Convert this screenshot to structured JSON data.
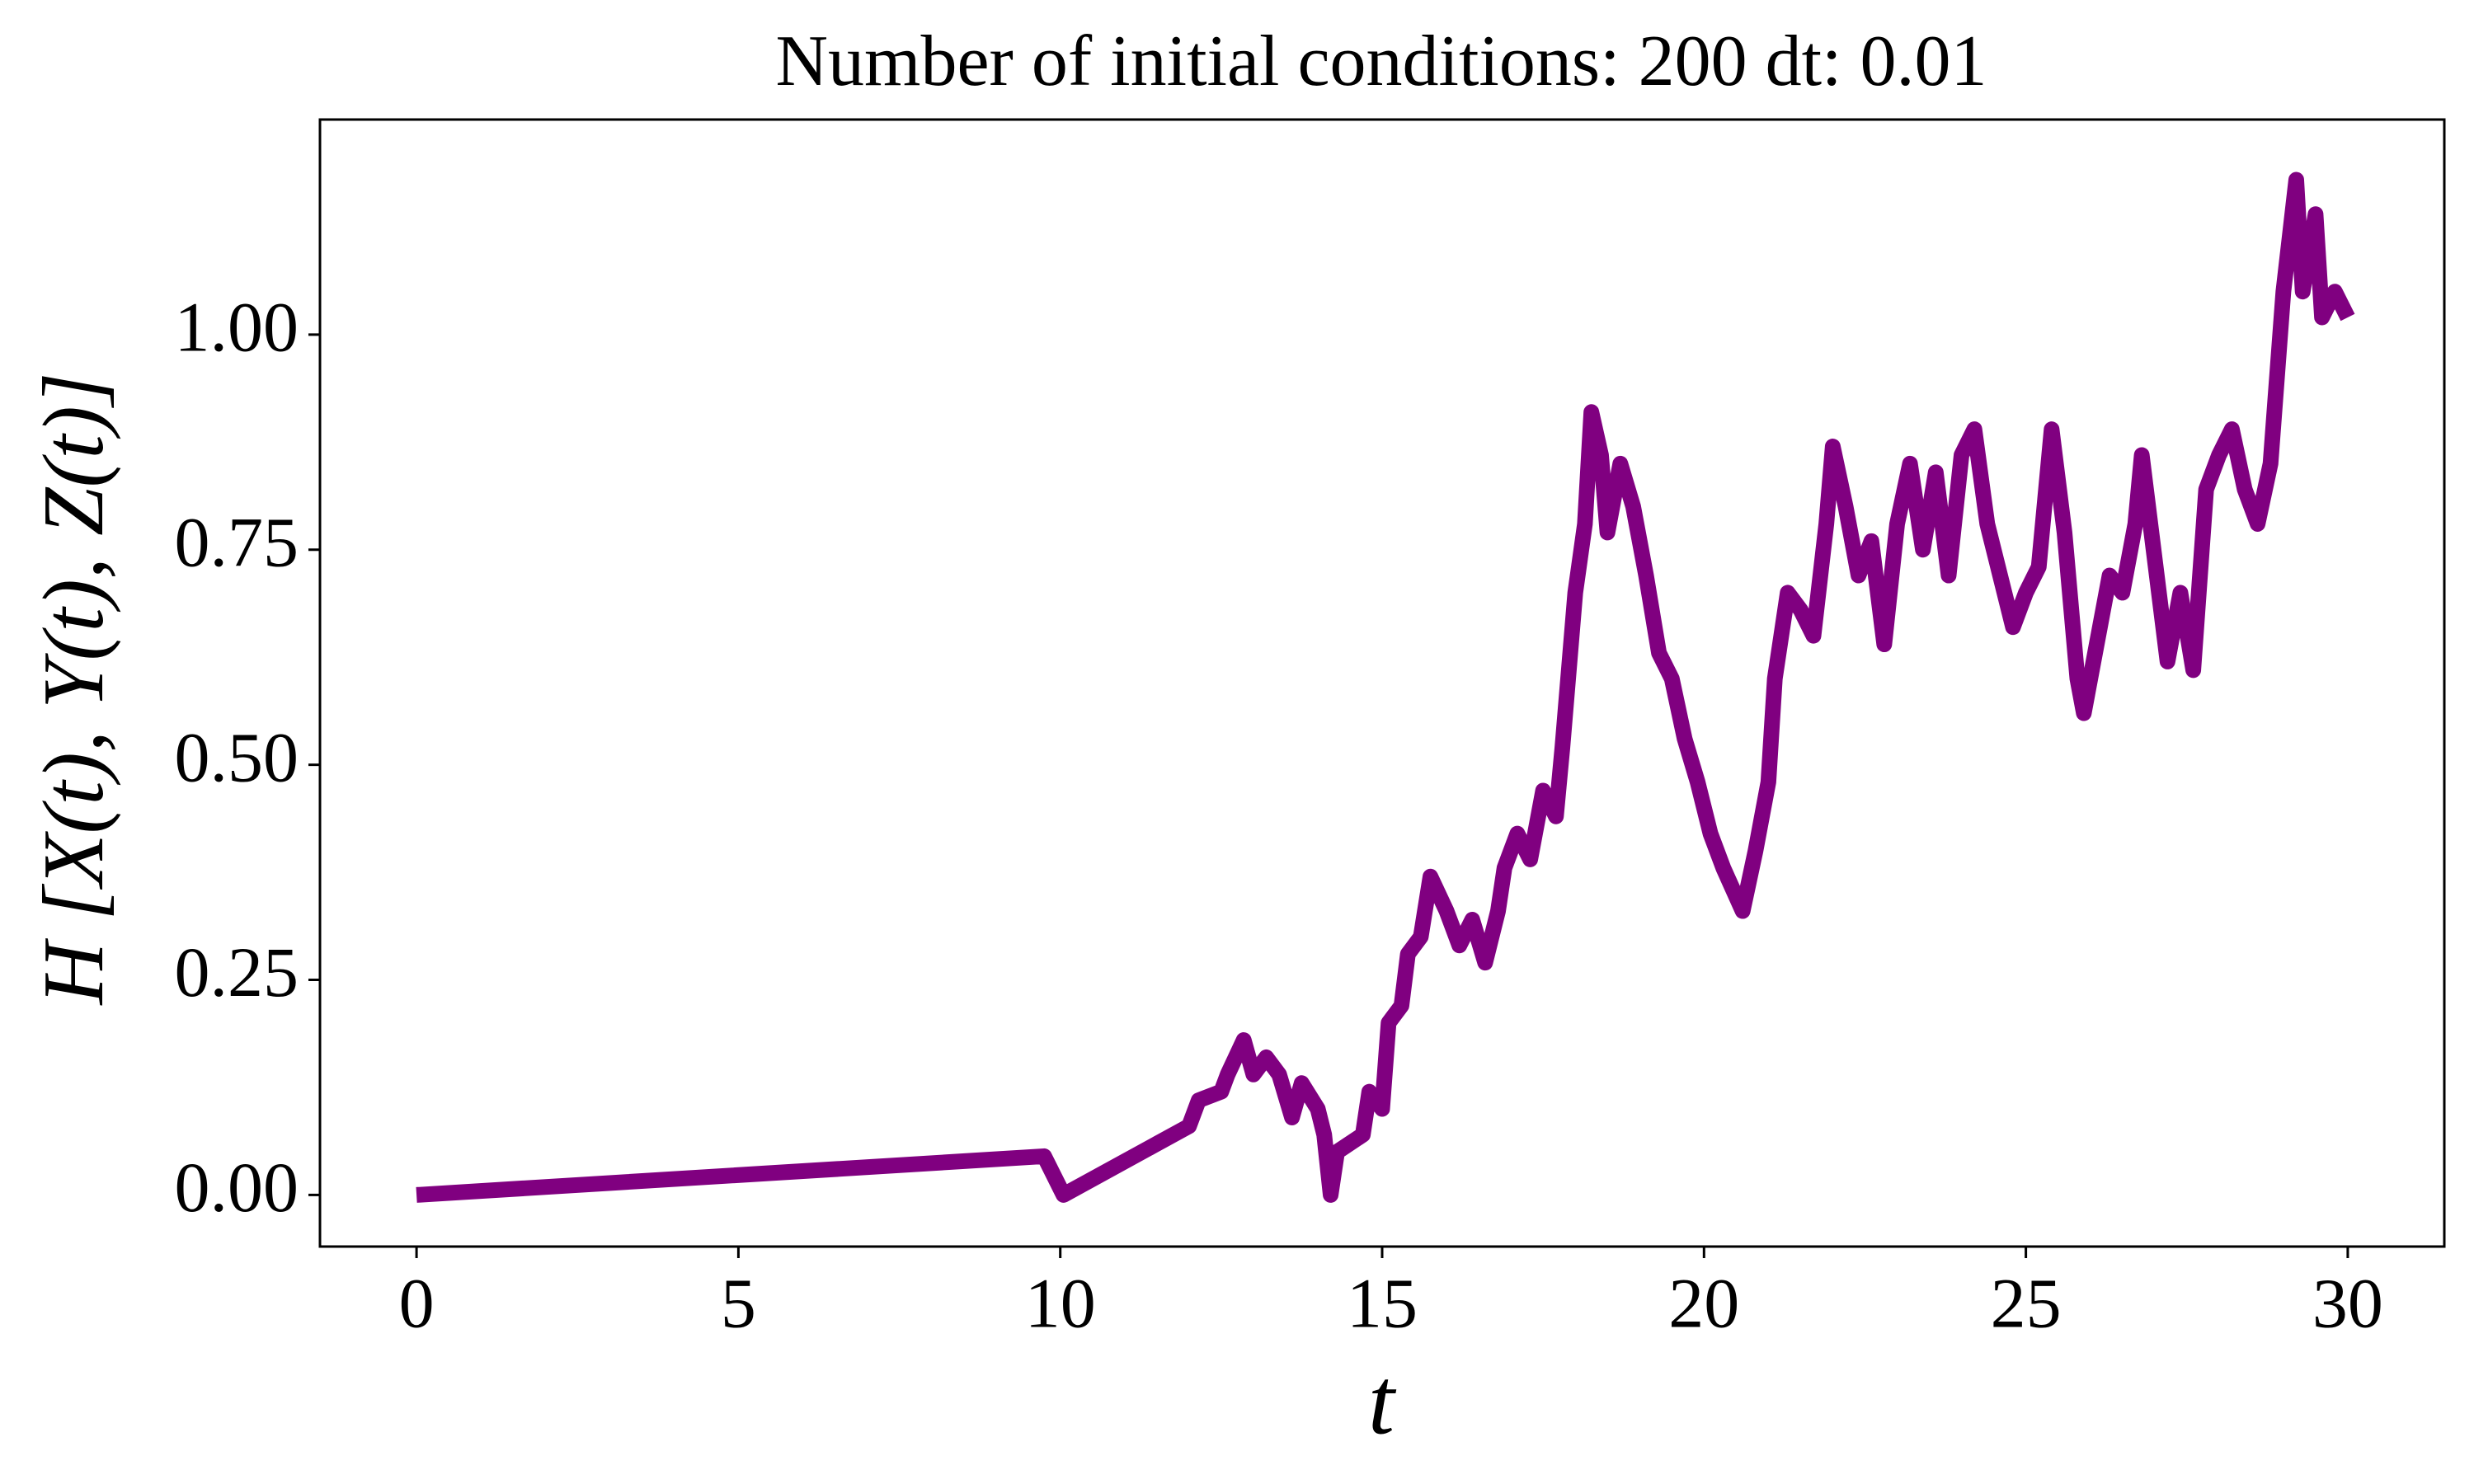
{
  "chart_data": {
    "type": "line",
    "title": "Number of initial conditions: 200 dt: 0.01",
    "xlabel": "t",
    "ylabel": "H [X(t), Y(t), Z(t)]",
    "x": [
      0,
      9.75,
      10.05,
      12.0,
      12.15,
      12.5,
      12.6,
      12.85,
      13.0,
      13.2,
      13.4,
      13.6,
      13.75,
      14.0,
      14.1,
      14.2,
      14.3,
      14.7,
      14.8,
      15.0,
      15.1,
      15.3,
      15.4,
      15.6,
      15.75,
      16.0,
      16.2,
      16.4,
      16.6,
      16.8,
      16.9,
      17.1,
      17.3,
      17.5,
      17.7,
      17.8,
      18.0,
      18.15,
      18.25,
      18.4,
      18.5,
      18.7,
      18.9,
      19.1,
      19.3,
      19.5,
      19.7,
      19.9,
      20.1,
      20.3,
      20.6,
      20.8,
      21.0,
      21.1,
      21.3,
      21.5,
      21.7,
      21.9,
      22.0,
      22.2,
      22.4,
      22.6,
      22.8,
      23.0,
      23.2,
      23.4,
      23.6,
      23.8,
      24.0,
      24.2,
      24.4,
      24.6,
      24.8,
      25.0,
      25.2,
      25.4,
      25.6,
      25.8,
      25.9,
      26.1,
      26.3,
      26.5,
      26.7,
      26.8,
      27.0,
      27.2,
      27.4,
      27.6,
      27.8,
      28.0,
      28.2,
      28.4,
      28.6,
      28.8,
      29.0,
      29.2,
      29.3,
      29.5,
      29.6,
      29.8,
      30.0
    ],
    "series": [
      {
        "color": "#800080",
        "values": [
          0,
          0.045,
          0,
          0.08,
          0.11,
          0.12,
          0.14,
          0.18,
          0.14,
          0.16,
          0.14,
          0.09,
          0.13,
          0.1,
          0.07,
          0.0,
          0.05,
          0.07,
          0.12,
          0.1,
          0.2,
          0.22,
          0.28,
          0.3,
          0.37,
          0.33,
          0.29,
          0.32,
          0.27,
          0.33,
          0.38,
          0.42,
          0.39,
          0.47,
          0.44,
          0.52,
          0.7,
          0.78,
          0.91,
          0.86,
          0.77,
          0.85,
          0.8,
          0.72,
          0.63,
          0.6,
          0.53,
          0.48,
          0.42,
          0.38,
          0.33,
          0.4,
          0.48,
          0.6,
          0.7,
          0.68,
          0.65,
          0.78,
          0.87,
          0.8,
          0.72,
          0.76,
          0.64,
          0.78,
          0.85,
          0.75,
          0.84,
          0.72,
          0.86,
          0.89,
          0.78,
          0.72,
          0.66,
          0.7,
          0.73,
          0.89,
          0.77,
          0.6,
          0.56,
          0.64,
          0.72,
          0.7,
          0.78,
          0.86,
          0.74,
          0.62,
          0.7,
          0.61,
          0.82,
          0.86,
          0.89,
          0.82,
          0.78,
          0.85,
          1.05,
          1.18,
          1.05,
          1.14,
          1.02,
          1.05,
          1.02
        ]
      }
    ],
    "xlim": [
      -1.5,
      31.5
    ],
    "ylim": [
      -0.06,
      1.25
    ],
    "xticks": [
      0,
      5,
      10,
      15,
      20,
      25,
      30
    ],
    "yticks": [
      {
        "value": 0,
        "label": "0.00"
      },
      {
        "value": 0.25,
        "label": "0.25"
      },
      {
        "value": 0.5,
        "label": "0.50"
      },
      {
        "value": 0.75,
        "label": "0.75"
      },
      {
        "value": 1,
        "label": "1.00"
      }
    ]
  }
}
